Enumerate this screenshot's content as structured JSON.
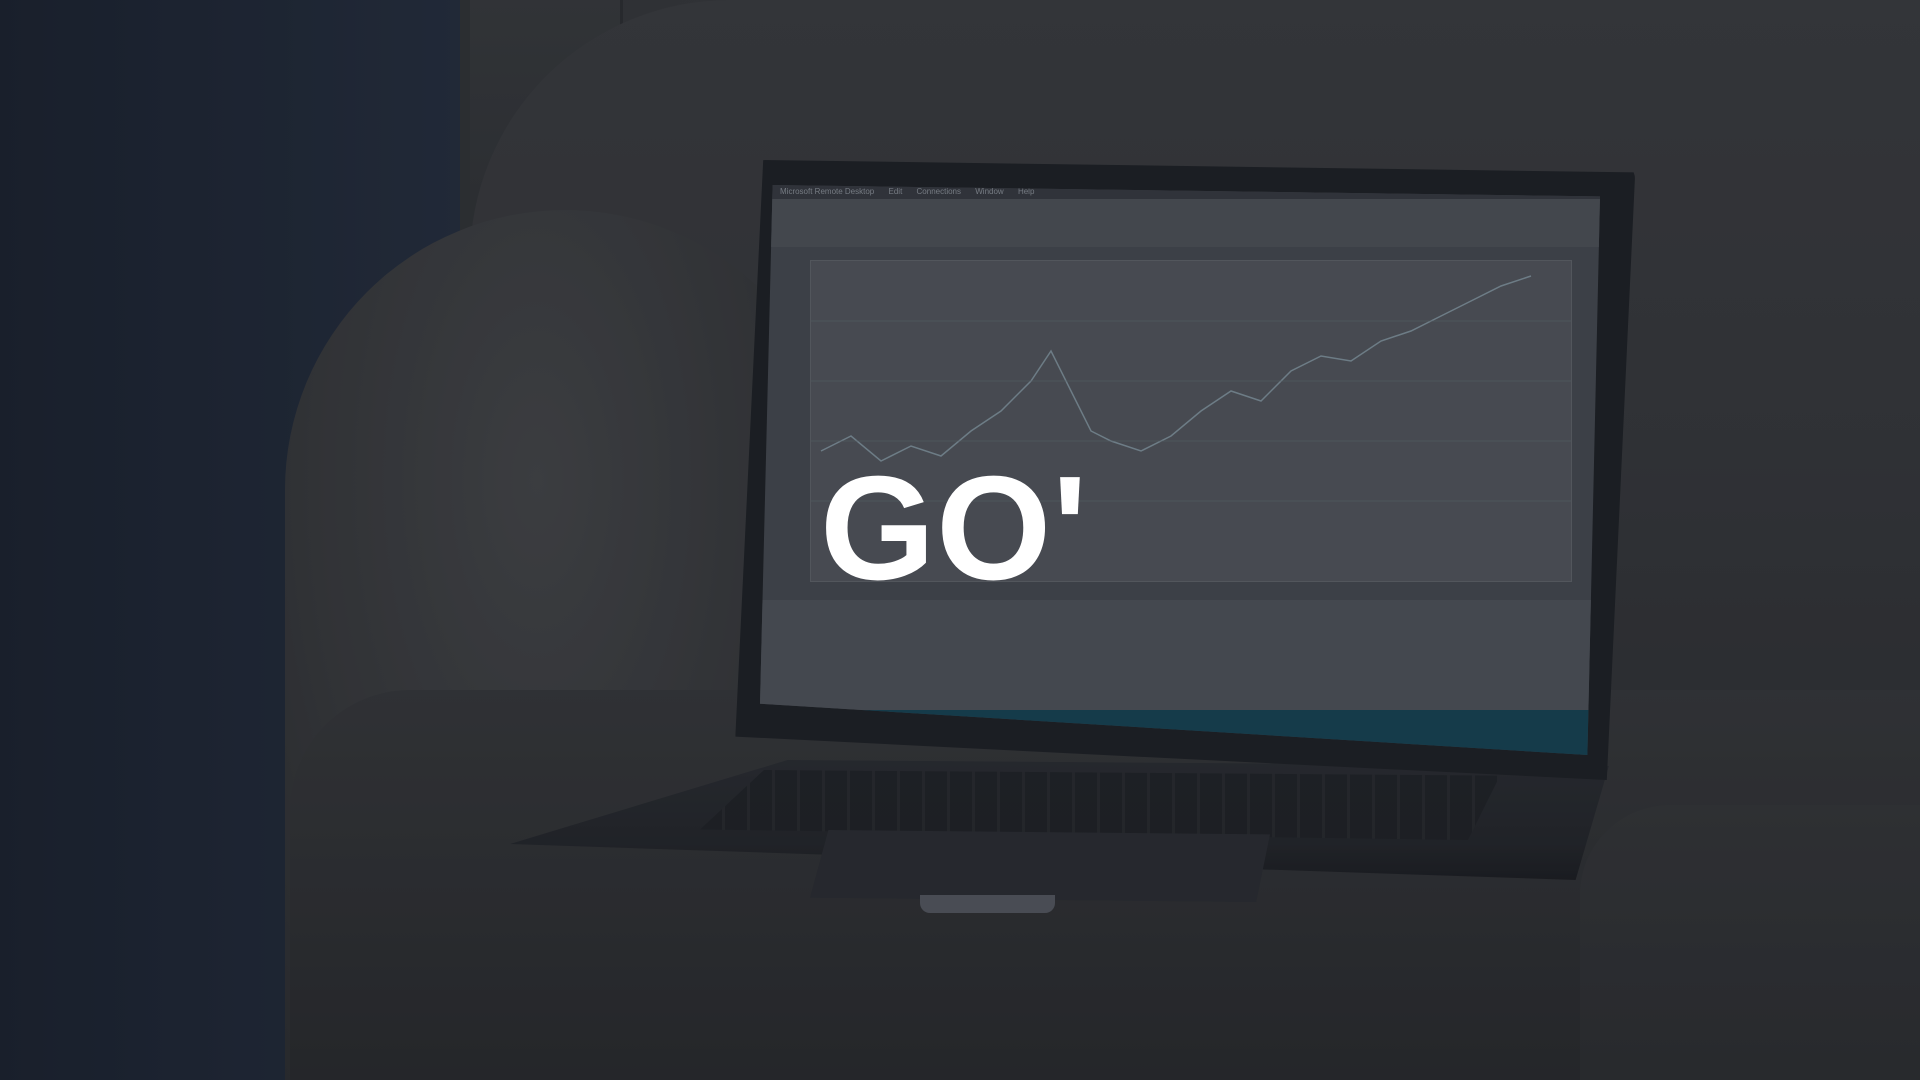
{
  "headline": "GO'",
  "colors": {
    "headline": "#ffffff",
    "background": "#2a2d33",
    "taskbar": "#16485a"
  },
  "screen": {
    "app_title": "Microsoft Remote Desktop",
    "menu_items": [
      "Edit",
      "Connections",
      "Window",
      "Help"
    ]
  }
}
